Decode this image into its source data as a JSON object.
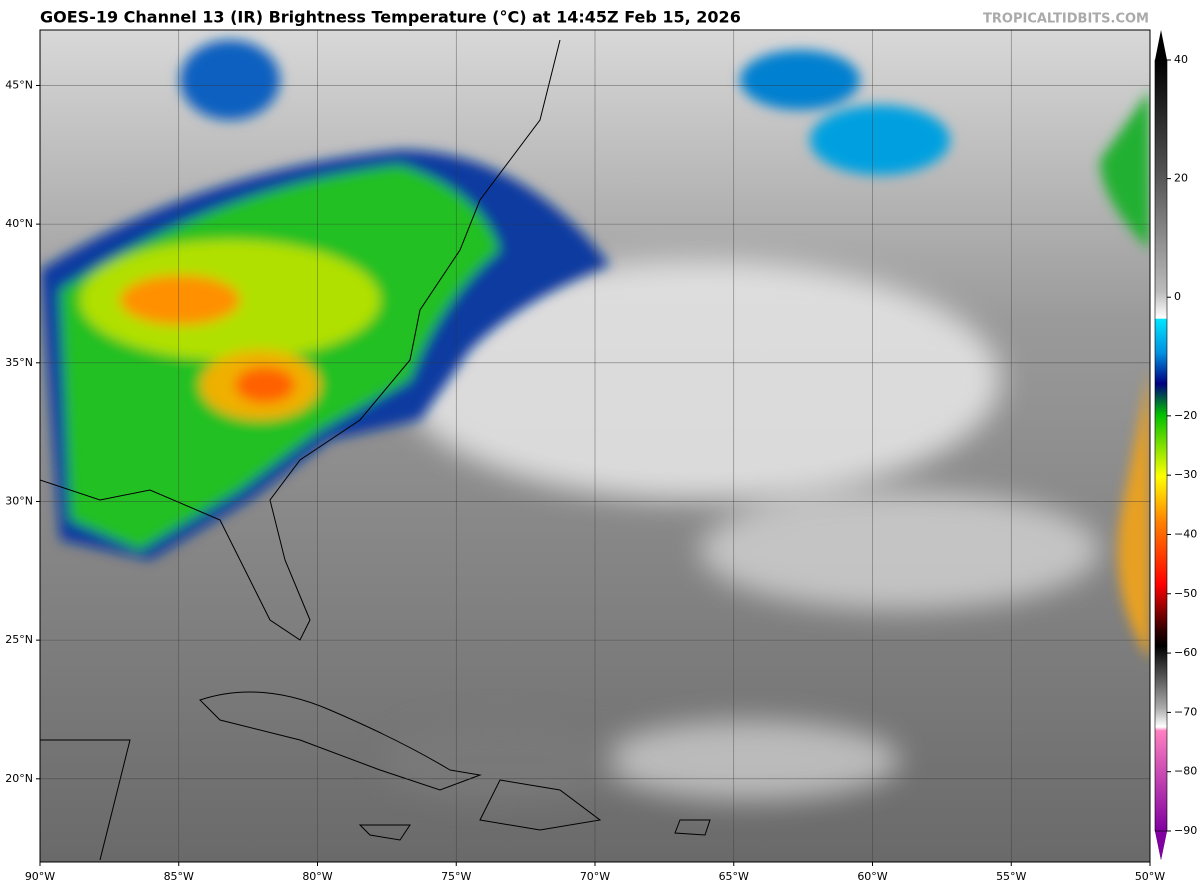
{
  "header": {
    "title": "GOES-19 Channel 13 (IR) Brightness Temperature (°C) at 14:45Z Feb 15, 2026",
    "credit": "TROPICALTIDBITS.COM"
  },
  "map": {
    "xlim": [
      -90,
      -50
    ],
    "ylim": [
      17,
      47
    ],
    "xticks": [
      {
        "value": -90,
        "label": "90°W"
      },
      {
        "value": -85,
        "label": "85°W"
      },
      {
        "value": -80,
        "label": "80°W"
      },
      {
        "value": -75,
        "label": "75°W"
      },
      {
        "value": -70,
        "label": "70°W"
      },
      {
        "value": -65,
        "label": "65°W"
      },
      {
        "value": -60,
        "label": "60°W"
      },
      {
        "value": -55,
        "label": "55°W"
      },
      {
        "value": -50,
        "label": "50°W"
      }
    ],
    "yticks": [
      {
        "value": 20,
        "label": "20°N"
      },
      {
        "value": 25,
        "label": "25°N"
      },
      {
        "value": 30,
        "label": "30°N"
      },
      {
        "value": 35,
        "label": "35°N"
      },
      {
        "value": 40,
        "label": "40°N"
      },
      {
        "value": 45,
        "label": "45°N"
      }
    ]
  },
  "colorbar": {
    "range": [
      -90,
      40
    ],
    "ticks": [
      40,
      20,
      0,
      {
        "value": -20,
        "label": "−20"
      },
      {
        "value": -30,
        "label": "−30"
      },
      {
        "value": -40,
        "label": "−40"
      },
      {
        "value": -50,
        "label": "−50"
      },
      {
        "value": -60,
        "label": "−60"
      },
      {
        "value": -70,
        "label": "−70"
      },
      {
        "value": -80,
        "label": "−80"
      },
      {
        "value": -90,
        "label": "−90"
      }
    ]
  }
}
